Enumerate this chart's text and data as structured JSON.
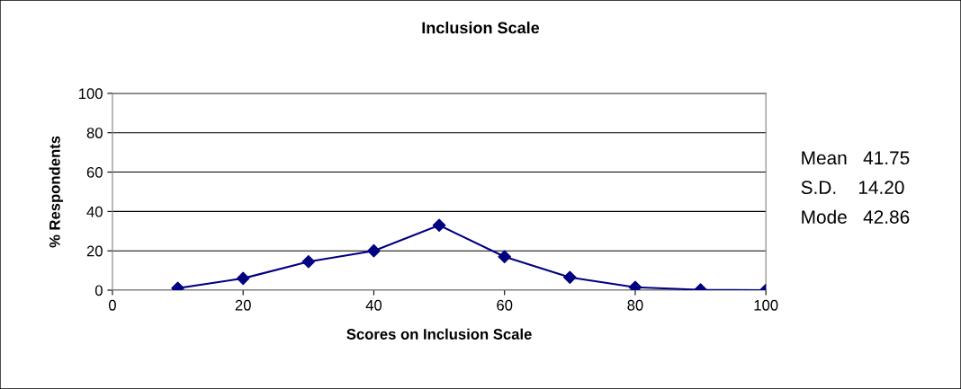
{
  "chart_data": {
    "type": "line",
    "title": "Inclusion Scale",
    "xlabel": "Scores on Inclusion Scale",
    "ylabel": "% Respondents",
    "x": [
      10,
      20,
      30,
      40,
      50,
      60,
      70,
      80,
      90,
      100
    ],
    "series": [
      {
        "color": "#000080",
        "values": [
          1,
          6,
          14.5,
          20,
          33,
          17,
          6.5,
          1.5,
          0.2,
          0
        ]
      }
    ],
    "xlim": [
      0,
      100
    ],
    "xticks": [
      0,
      20,
      40,
      60,
      80,
      100
    ],
    "ylim": [
      0,
      100
    ],
    "yticks": [
      0,
      20,
      40,
      60,
      80,
      100
    ],
    "grid": "y",
    "marker": "diamond",
    "line_style": "solid",
    "legend": false,
    "annotations": [
      "Mean   41.75",
      "S.D.    14.20",
      "Mode   42.86"
    ]
  }
}
